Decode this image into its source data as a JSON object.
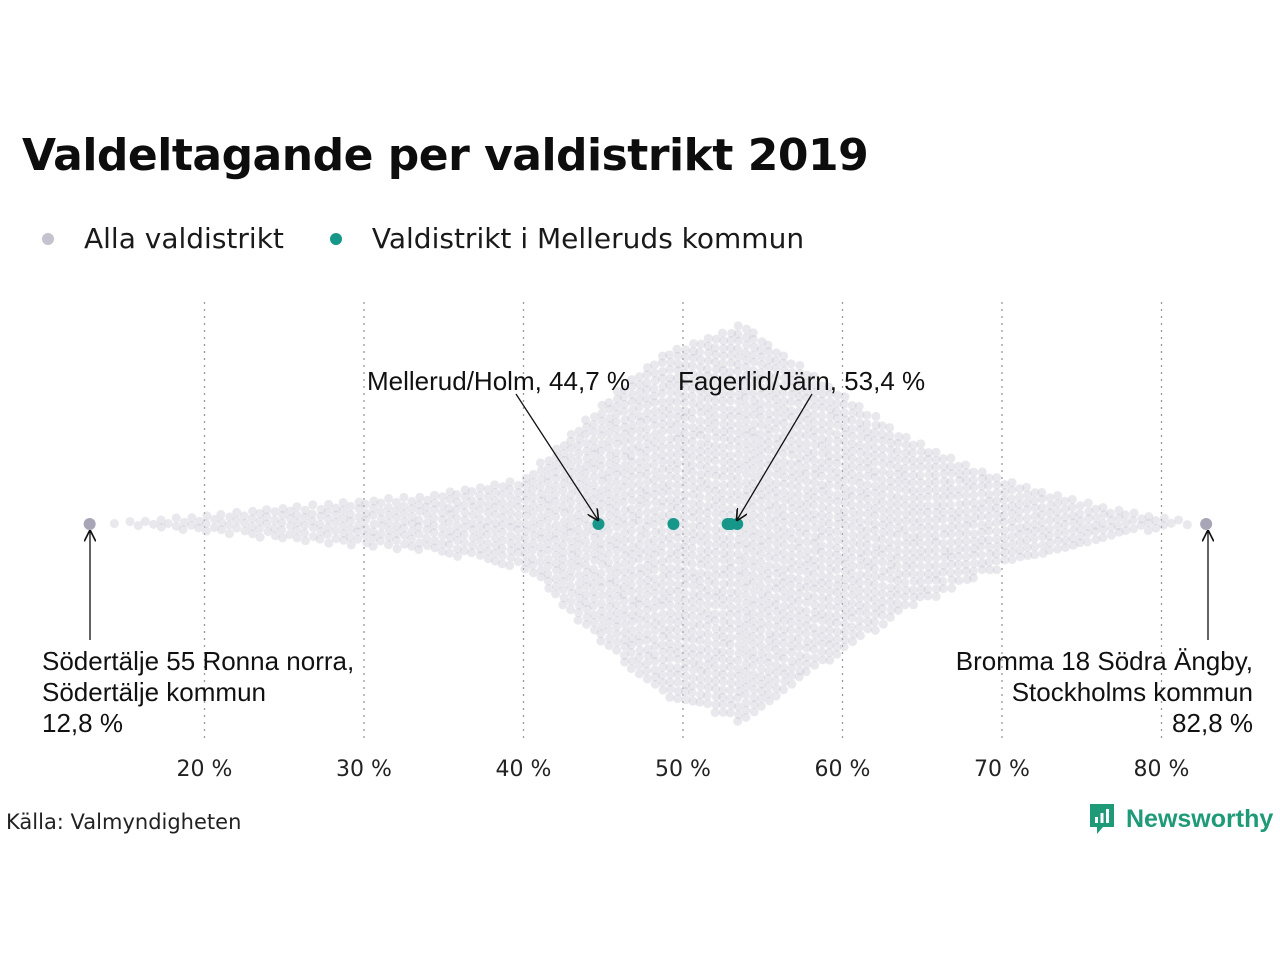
{
  "chart_data": {
    "type": "beeswarm",
    "title": "Valdeltagande per valdistrikt 2019",
    "legend": {
      "placement": "top-left",
      "items": [
        {
          "label": "Alla valdistrikt",
          "color": "#c3c2cf"
        },
        {
          "label": "Valdistrikt i Melleruds kommun",
          "color": "#17968a"
        }
      ]
    },
    "x_axis": {
      "ticks": [
        20,
        30,
        40,
        50,
        60,
        70,
        80
      ],
      "tick_labels": [
        "20 %",
        "30 %",
        "40 %",
        "50 %",
        "60 %",
        "70 %",
        "80 %"
      ],
      "range": [
        12.8,
        82.8
      ],
      "grid": true,
      "grid_style": "dotted"
    },
    "distribution": {
      "min": 12.8,
      "max": 82.8,
      "peak": 53.4
    },
    "highlighted": {
      "series": "Valdistrikt i Melleruds kommun",
      "values": [
        44.7,
        49.4,
        52.8,
        53.0,
        53.4
      ]
    },
    "annotations": [
      {
        "id": "mellerud-holm",
        "lines": [
          "Mellerud/Holm, 44,7 %"
        ],
        "value": 44.7
      },
      {
        "id": "fagerlid-jarn",
        "lines": [
          "Fagerlid/Järn, 53,4 %"
        ],
        "value": 53.4
      },
      {
        "id": "min",
        "lines": [
          "Södertälje 55 Ronna norra,",
          "Södertälje kommun",
          "12,8 %"
        ],
        "value": 12.8
      },
      {
        "id": "max",
        "lines": [
          "Bromma 18 Södra Ängby,",
          "Stockholms kommun",
          "82,8 %"
        ],
        "value": 82.8
      }
    ]
  },
  "footer": {
    "source": "Källa: Valmyndigheten",
    "brand": "Newsworthy"
  },
  "colors": {
    "all": "#c3c2cf",
    "highlight": "#17968a",
    "grid": "#9a9a9a",
    "brand": "#1f9a78"
  }
}
